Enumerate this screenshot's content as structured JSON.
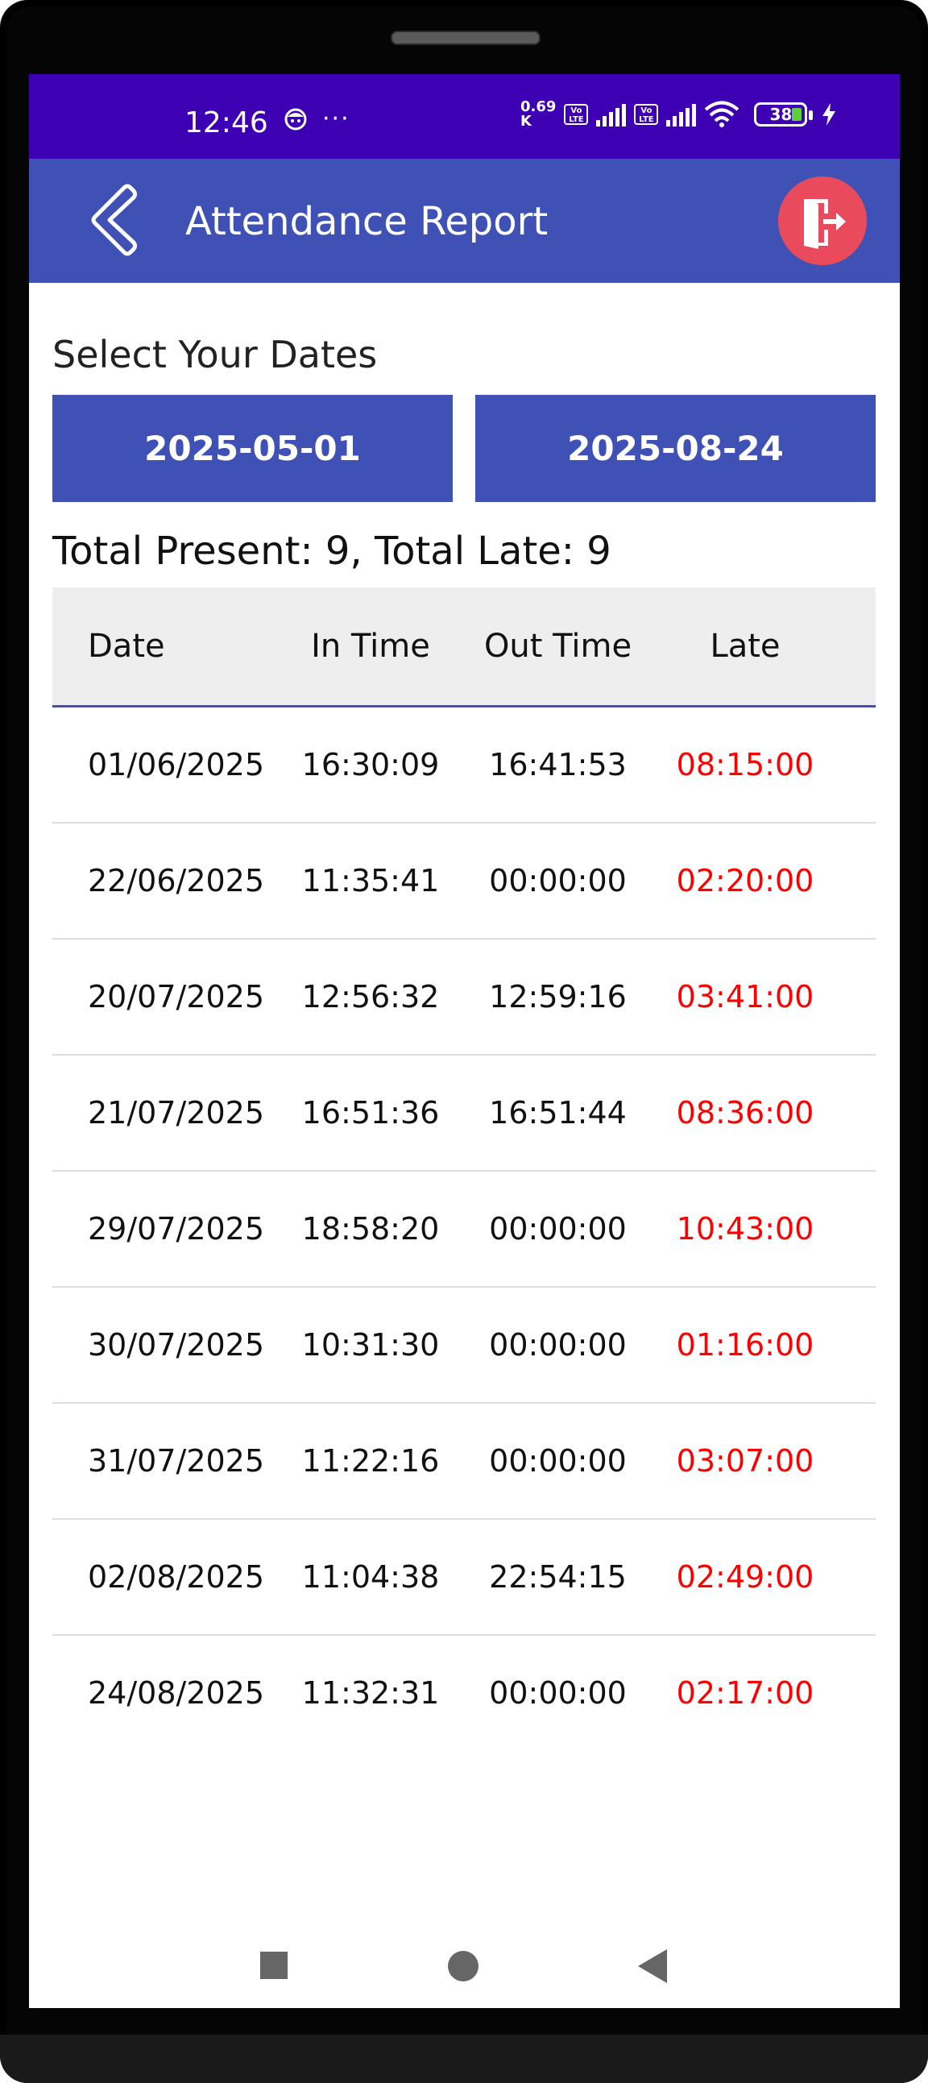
{
  "status_bar": {
    "time": "12:46",
    "dots": "···",
    "net_speed_value": "0.69",
    "net_speed_unit": "K",
    "volte_label_1": "Vo LTE",
    "volte_label_2": "Vo LTE",
    "battery_level": "38",
    "color": "#3d00b3"
  },
  "app_bar": {
    "title": "Attendance Report",
    "back_icon": "chevron-left-icon",
    "exit_icon": "logout-door-icon",
    "color": "#3f51b5",
    "exit_color": "#e94b5d"
  },
  "filter": {
    "label": "Select Your Dates",
    "start_date": "2025-05-01",
    "end_date": "2025-08-24"
  },
  "summary": {
    "text": "Total Present: 9, Total Late: 9"
  },
  "table": {
    "headers": {
      "date": "Date",
      "in_time": "In Time",
      "out_time": "Out Time",
      "late": "Late"
    },
    "rows": [
      {
        "date": "01/06/2025",
        "in_time": "16:30:09",
        "out_time": "16:41:53",
        "late": "08:15:00"
      },
      {
        "date": "22/06/2025",
        "in_time": "11:35:41",
        "out_time": "00:00:00",
        "late": "02:20:00"
      },
      {
        "date": "20/07/2025",
        "in_time": "12:56:32",
        "out_time": "12:59:16",
        "late": "03:41:00"
      },
      {
        "date": "21/07/2025",
        "in_time": "16:51:36",
        "out_time": "16:51:44",
        "late": "08:36:00"
      },
      {
        "date": "29/07/2025",
        "in_time": "18:58:20",
        "out_time": "00:00:00",
        "late": "10:43:00"
      },
      {
        "date": "30/07/2025",
        "in_time": "10:31:30",
        "out_time": "00:00:00",
        "late": "01:16:00"
      },
      {
        "date": "31/07/2025",
        "in_time": "11:22:16",
        "out_time": "00:00:00",
        "late": "03:07:00"
      },
      {
        "date": "02/08/2025",
        "in_time": "11:04:38",
        "out_time": "22:54:15",
        "late": "02:49:00"
      },
      {
        "date": "24/08/2025",
        "in_time": "11:32:31",
        "out_time": "00:00:00",
        "late": "02:17:00"
      }
    ],
    "late_color": "#ff0000"
  },
  "nav_bar": {
    "recents_icon": "square-recents-icon",
    "home_icon": "circle-home-icon",
    "back_icon": "triangle-back-icon"
  }
}
